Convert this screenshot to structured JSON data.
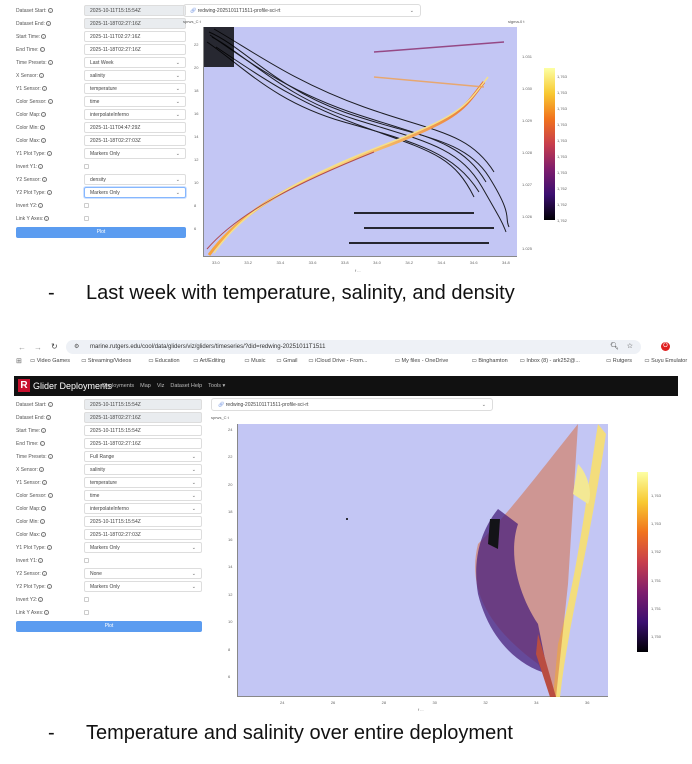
{
  "top_panel": {
    "form": [
      {
        "label": "Dataset Start:",
        "value": "2025-10-11T15:15:54Z",
        "type": "readonly"
      },
      {
        "label": "Dataset End:",
        "value": "2025-11-18T02:27:16Z",
        "type": "readonly"
      },
      {
        "label": "Start Time:",
        "value": "2025-11-11T02:27:16Z",
        "type": "input"
      },
      {
        "label": "End Time:",
        "value": "2025-11-18T02:27:16Z",
        "type": "input"
      },
      {
        "label": "Time Presets:",
        "value": "Last Week",
        "type": "select"
      },
      {
        "label": "X Sensor:",
        "value": "salinity",
        "type": "select"
      },
      {
        "label": "Y1 Sensor:",
        "value": "temperature",
        "type": "select"
      },
      {
        "label": "Color Sensor:",
        "value": "time",
        "type": "select"
      },
      {
        "label": "Color Map:",
        "value": "interpolateInferno",
        "type": "select"
      },
      {
        "label": "Color Min:",
        "value": "2025-11-11T04:47:29Z",
        "type": "input"
      },
      {
        "label": "Color Max:",
        "value": "2025-11-18T02:27:03Z",
        "type": "input"
      },
      {
        "label": "Y1 Plot Type:",
        "value": "Markers Only",
        "type": "select"
      },
      {
        "label": "Invert Y1:",
        "value": "",
        "type": "checkbox"
      },
      {
        "label": "Y2 Sensor:",
        "value": "density",
        "type": "select"
      },
      {
        "label": "Y2 Plot Type:",
        "value": "Markers Only",
        "type": "select-focus"
      },
      {
        "label": "Invert Y2:",
        "value": "",
        "type": "checkbox"
      },
      {
        "label": "Link Y Axes:",
        "value": "",
        "type": "checkbox"
      }
    ],
    "plot_button": "Plot",
    "dataset_select": "redwing-20251011T1511-profile-sci-rt",
    "y_label": "sprws_C t",
    "y2_label": "sigma-0 t",
    "x_label": "f ...",
    "y_ticks": [
      "22",
      "20",
      "18",
      "16",
      "14",
      "12",
      "10",
      "8",
      "6"
    ],
    "y2_ticks": [
      "1.031",
      "1.030",
      "1.029",
      "1.028",
      "1.027",
      "1.026",
      "1.025"
    ],
    "x_ticks": [
      "33.0",
      "33.2",
      "33.4",
      "33.6",
      "33.8",
      "34.0",
      "34.2",
      "34.4",
      "34.6",
      "34.8"
    ],
    "colorbar_ticks": [
      "1,763",
      "1,763",
      "1,763",
      "1,763",
      "1,763",
      "1,763",
      "1,763",
      "1,762",
      "1,762",
      "1,762"
    ]
  },
  "caption1": "Last week with temperature, salinity, and density",
  "browser": {
    "url": "marine.rutgers.edu/cool/data/gliders/viz/gliders/timeseries/?did=redwing-20251011T1511",
    "bookmarks": [
      "Video Games",
      "Streaming/Videos",
      "Education",
      "Art/Editing",
      "Music",
      "Gmail",
      "iCloud Drive - From...",
      "My files - OneDrive",
      "Binghamton",
      "Inbox (8) - ark252@...",
      "Rutgers",
      "Suyu Emulator"
    ]
  },
  "navbar": {
    "brand": "Glider Deployments",
    "links": [
      "Deployments",
      "Map",
      "Viz",
      "Dataset Help",
      "Tools ▾"
    ]
  },
  "bottom_panel": {
    "form": [
      {
        "label": "Dataset Start:",
        "value": "2025-10-11T15:15:54Z",
        "type": "readonly"
      },
      {
        "label": "Dataset End:",
        "value": "2025-11-18T02:27:16Z",
        "type": "readonly"
      },
      {
        "label": "Start Time:",
        "value": "2025-10-11T15:15:54Z",
        "type": "input"
      },
      {
        "label": "End Time:",
        "value": "2025-11-18T02:27:16Z",
        "type": "input"
      },
      {
        "label": "Time Presets:",
        "value": "Full Range",
        "type": "select"
      },
      {
        "label": "X Sensor:",
        "value": "salinity",
        "type": "select"
      },
      {
        "label": "Y1 Sensor:",
        "value": "temperature",
        "type": "select"
      },
      {
        "label": "Color Sensor:",
        "value": "time",
        "type": "select"
      },
      {
        "label": "Color Map:",
        "value": "interpolateInferno",
        "type": "select"
      },
      {
        "label": "Color Min:",
        "value": "2025-10-11T15:15:54Z",
        "type": "input"
      },
      {
        "label": "Color Max:",
        "value": "2025-11-18T02:27:03Z",
        "type": "input"
      },
      {
        "label": "Y1 Plot Type:",
        "value": "Markers Only",
        "type": "select"
      },
      {
        "label": "Invert Y1:",
        "value": "",
        "type": "checkbox"
      },
      {
        "label": "Y2 Sensor:",
        "value": "None",
        "type": "select"
      },
      {
        "label": "Y2 Plot Type:",
        "value": "Markers Only",
        "type": "select"
      },
      {
        "label": "Invert Y2:",
        "value": "",
        "type": "checkbox"
      },
      {
        "label": "Link Y Axes:",
        "value": "",
        "type": "checkbox"
      }
    ],
    "plot_button": "Plot",
    "dataset_select": "redwing-20251011T1511-profile-sci-rt",
    "y_label": "sprws_C t",
    "x_label": "f ...",
    "y_ticks": [
      "24",
      "22",
      "20",
      "18",
      "16",
      "14",
      "12",
      "10",
      "8",
      "6"
    ],
    "x_ticks": [
      "24",
      "26",
      "28",
      "30",
      "32",
      "34",
      "36"
    ],
    "colorbar_ticks": [
      "1,763",
      "1,763",
      "1,762",
      "1,751",
      "1,751",
      "1,750"
    ]
  },
  "caption2": "Temperature and salinity over entire deployment",
  "colors": {
    "plot_bg": "#c3c6f4",
    "button": "#5b9cf0",
    "navbar": "#111111"
  }
}
